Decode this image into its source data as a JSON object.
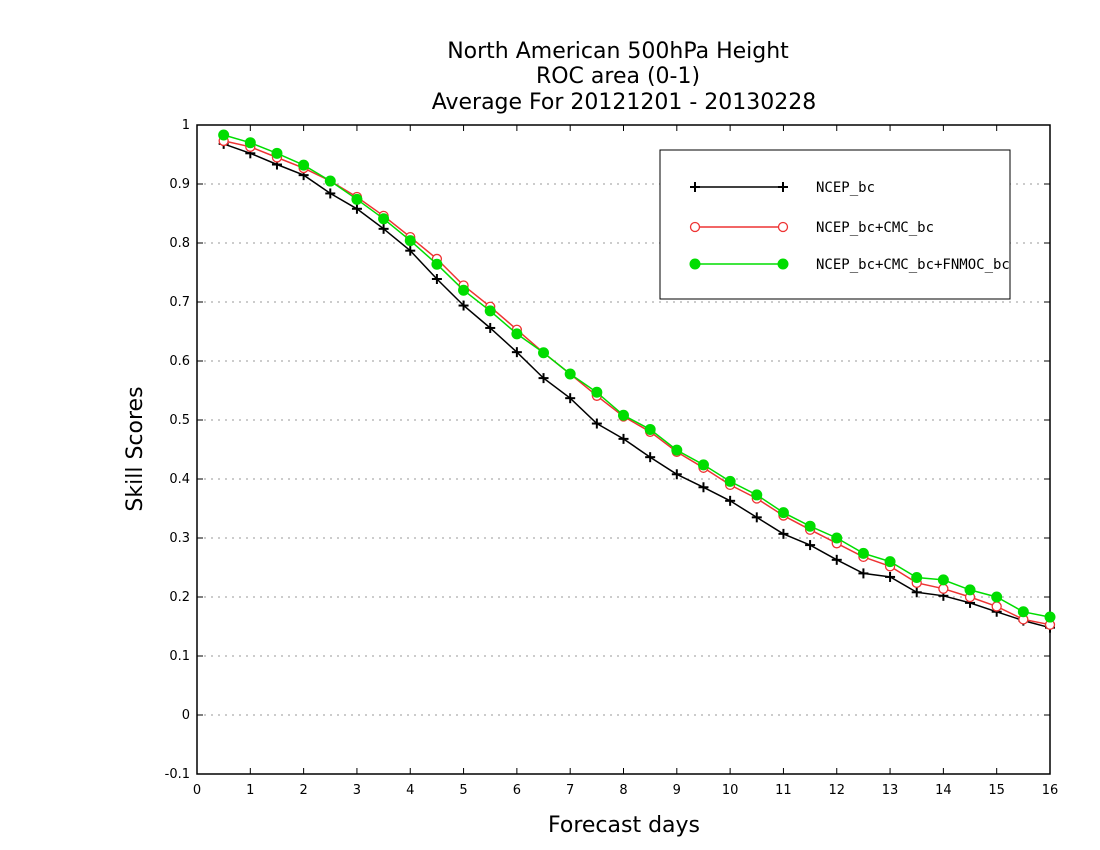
{
  "chart_data": {
    "type": "line",
    "title": [
      "North American 500hPa Height",
      "ROC area (0-1)",
      "Average For 20121201 - 20130228"
    ],
    "xlabel": "Forecast days",
    "ylabel": "Skill Scores",
    "xlim": [
      0,
      16
    ],
    "ylim": [
      -0.1,
      1
    ],
    "xticks": [
      0,
      1,
      2,
      3,
      4,
      5,
      6,
      7,
      8,
      9,
      10,
      11,
      12,
      13,
      14,
      15,
      16
    ],
    "yticks": [
      -0.1,
      0,
      0.1,
      0.2,
      0.3,
      0.4,
      0.5,
      0.6,
      0.7,
      0.8,
      0.9,
      1
    ],
    "ytick_labels": [
      "-0.1",
      "0",
      "0.1",
      "0.2",
      "0.3",
      "0.4",
      "0.5",
      "0.6",
      "0.7",
      "0.8",
      "0.9",
      "1"
    ],
    "grid": "horizontal dotted",
    "legend_position": "top-right",
    "x": [
      0.5,
      1,
      1.5,
      2,
      2.5,
      3,
      3.5,
      4,
      4.5,
      5,
      5.5,
      6,
      6.5,
      7,
      7.5,
      8,
      8.5,
      9,
      9.5,
      10,
      10.5,
      11,
      11.5,
      12,
      12.5,
      13,
      13.5,
      14,
      14.5,
      15,
      15.5,
      16
    ],
    "series": [
      {
        "name": "NCEP_bc",
        "color": "#000000",
        "marker": "plus",
        "values": [
          0.968,
          0.952,
          0.933,
          0.915,
          0.884,
          0.858,
          0.824,
          0.787,
          0.739,
          0.694,
          0.656,
          0.615,
          0.571,
          0.537,
          0.494,
          0.468,
          0.437,
          0.408,
          0.386,
          0.363,
          0.335,
          0.307,
          0.288,
          0.263,
          0.24,
          0.234,
          0.208,
          0.202,
          0.19,
          0.175,
          0.16,
          0.148
        ]
      },
      {
        "name": "NCEP_bc+CMC_bc",
        "color": "#ee3333",
        "marker": "open-circle",
        "values": [
          0.973,
          0.963,
          0.945,
          0.927,
          0.905,
          0.878,
          0.846,
          0.81,
          0.773,
          0.728,
          0.692,
          0.653,
          0.614,
          0.578,
          0.541,
          0.506,
          0.48,
          0.446,
          0.419,
          0.39,
          0.367,
          0.338,
          0.314,
          0.291,
          0.268,
          0.252,
          0.224,
          0.214,
          0.2,
          0.184,
          0.162,
          0.153
        ]
      },
      {
        "name": "NCEP_bc+CMC_bc+FNMOC_bc",
        "color": "#00dd00",
        "marker": "filled-circle",
        "values": [
          0.983,
          0.97,
          0.952,
          0.932,
          0.905,
          0.874,
          0.841,
          0.804,
          0.764,
          0.72,
          0.685,
          0.646,
          0.614,
          0.578,
          0.547,
          0.508,
          0.484,
          0.449,
          0.424,
          0.396,
          0.373,
          0.343,
          0.32,
          0.3,
          0.274,
          0.26,
          0.233,
          0.229,
          0.212,
          0.2,
          0.175,
          0.166
        ]
      }
    ]
  }
}
